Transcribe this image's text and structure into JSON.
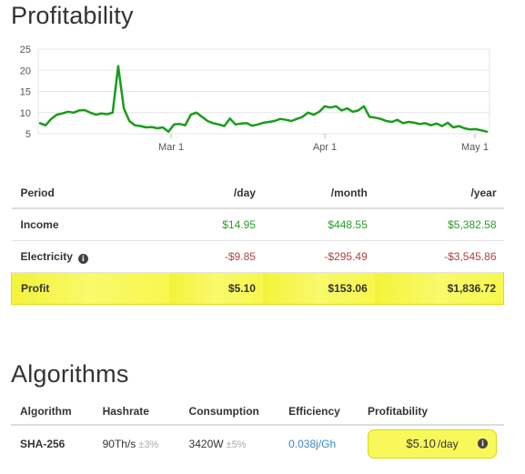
{
  "profitability": {
    "title": "Profitability",
    "chart_data": {
      "type": "line",
      "title": "",
      "xlabel": "",
      "ylabel": "",
      "x_tick_labels": [
        "Mar 1",
        "Apr 1",
        "May 1"
      ],
      "y_tick_labels": [
        "5",
        "10",
        "15",
        "20",
        "25"
      ],
      "ylim": [
        5,
        25
      ],
      "grid": true,
      "line_color": "#1a9c1a",
      "series": [
        {
          "values": [
            7.5,
            7.0,
            8.5,
            9.5,
            9.8,
            10.2,
            10.0,
            10.5,
            10.6,
            10.0,
            9.5,
            9.8,
            9.6,
            10.0,
            21.0,
            11.0,
            8.0,
            7.0,
            6.8,
            6.5,
            6.6,
            6.3,
            6.5,
            5.5,
            7.2,
            7.3,
            7.0,
            9.5,
            10.0,
            9.0,
            8.0,
            7.5,
            7.2,
            6.8,
            8.6,
            7.2,
            7.4,
            7.5,
            6.9,
            7.2,
            7.6,
            7.8,
            8.0,
            8.5,
            8.3,
            8.0,
            8.5,
            9.0,
            10.0,
            9.5,
            10.2,
            11.5,
            11.2,
            11.5,
            10.5,
            11.0,
            10.2,
            10.5,
            11.5,
            9.0,
            8.8,
            8.5,
            8.0,
            7.8,
            8.3,
            7.5,
            7.8,
            7.6,
            7.3,
            7.5,
            7.0,
            7.4,
            6.8,
            7.6,
            6.5,
            6.8,
            6.3,
            6.0,
            6.1,
            5.8,
            5.5
          ]
        }
      ]
    }
  },
  "table": {
    "headers": [
      "Period",
      "/day",
      "/month",
      "/year"
    ],
    "income": {
      "label": "Income",
      "day": "$14.95",
      "month": "$448.55",
      "year": "$5,382.58"
    },
    "electricity": {
      "label": "Electricity",
      "day": "-$9.85",
      "month": "-$295.49",
      "year": "-$3,545.86"
    },
    "profit": {
      "label": "Profit",
      "day": "$5.10",
      "month": "$153.06",
      "year": "$1,836.72"
    }
  },
  "algorithms": {
    "title": "Algorithms",
    "headers": [
      "Algorithm",
      "Hashrate",
      "Consumption",
      "Efficiency",
      "Profitability"
    ],
    "row": {
      "algorithm": "SHA-256",
      "hashrate": "90Th/s",
      "hashrate_tol": "±3%",
      "consumption": "3420W",
      "consumption_tol": "±5%",
      "efficiency": "0.038j/Gh",
      "profit_value": "$5.10",
      "profit_unit": "/day"
    }
  },
  "colors": {
    "income": "#2a9c2a",
    "expense": "#a94442",
    "highlight": "#f8f85a",
    "link": "#3a88c5"
  }
}
